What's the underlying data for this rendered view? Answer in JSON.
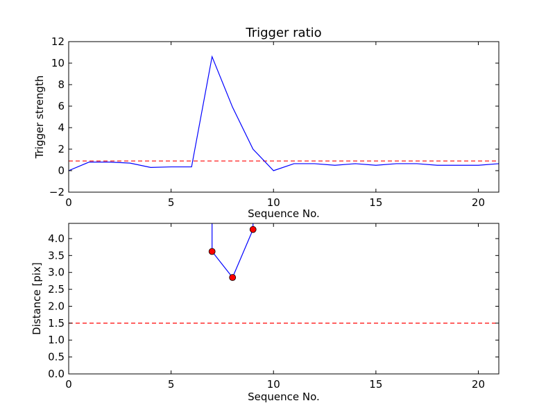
{
  "figure": {
    "background": "#ffffff"
  },
  "chart_data": [
    {
      "type": "line",
      "title": "Trigger ratio",
      "xlabel": "Sequence No.",
      "ylabel": "Trigger strength",
      "xlim": [
        0,
        21
      ],
      "ylim": [
        -2,
        12
      ],
      "xticks": [
        0,
        5,
        10,
        15,
        20
      ],
      "yticks": [
        -2,
        0,
        2,
        4,
        6,
        8,
        10,
        12
      ],
      "ytick_labels": [
        "−2",
        "0",
        "2",
        "4",
        "6",
        "8",
        "10",
        "12"
      ],
      "grid": false,
      "series": [
        {
          "color": "#0000ff",
          "style": "solid",
          "x": [
            0,
            1,
            2,
            3,
            4,
            5,
            6,
            7,
            8,
            9,
            10,
            11,
            12,
            13,
            14,
            15,
            16,
            17,
            18,
            19,
            20,
            21
          ],
          "y": [
            0.0,
            0.8,
            0.8,
            0.7,
            0.3,
            0.35,
            0.35,
            10.6,
            5.9,
            2.0,
            0.0,
            0.65,
            0.65,
            0.5,
            0.65,
            0.5,
            0.65,
            0.65,
            0.5,
            0.5,
            0.5,
            0.65
          ]
        }
      ],
      "reference_lines": [
        {
          "orientation": "horizontal",
          "y": 0.9,
          "color": "#ff0000",
          "style": "dashed"
        }
      ]
    },
    {
      "type": "line",
      "title": "",
      "xlabel": "Sequence No.",
      "ylabel": "Distance [pix]",
      "xlim": [
        0,
        21
      ],
      "ylim": [
        0,
        4.45
      ],
      "xticks": [
        0,
        5,
        10,
        15,
        20
      ],
      "yticks": [
        0.0,
        0.5,
        1.0,
        1.5,
        2.0,
        2.5,
        3.0,
        3.5,
        4.0
      ],
      "ytick_labels": [
        "0.0",
        "0.5",
        "1.0",
        "1.5",
        "2.0",
        "2.5",
        "3.0",
        "3.5",
        "4.0"
      ],
      "grid": false,
      "series": [
        {
          "color": "#0000ff",
          "style": "solid",
          "marker": "circle",
          "marker_color": "#ff0000",
          "x": [
            7,
            7,
            8,
            9,
            9
          ],
          "y": [
            6.0,
            3.62,
            2.85,
            4.27,
            4.6
          ],
          "marker_indices": [
            1,
            2,
            3
          ]
        }
      ],
      "reference_lines": [
        {
          "orientation": "horizontal",
          "y": 1.5,
          "color": "#ff0000",
          "style": "dashed"
        }
      ]
    }
  ]
}
